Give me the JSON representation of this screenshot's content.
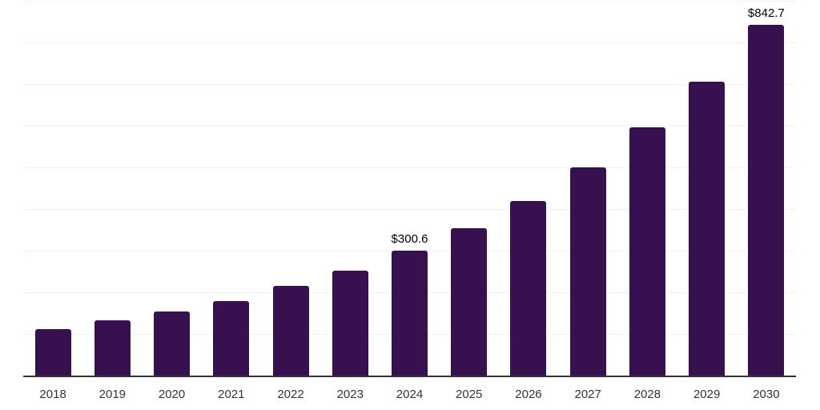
{
  "chart_data": {
    "type": "bar",
    "title": "",
    "xlabel": "",
    "ylabel": "",
    "categories": [
      "2018",
      "2019",
      "2020",
      "2021",
      "2022",
      "2023",
      "2024",
      "2025",
      "2026",
      "2027",
      "2028",
      "2029",
      "2030"
    ],
    "values": [
      110.9,
      131.9,
      153.8,
      179.3,
      215.9,
      252.4,
      300.6,
      354.3,
      420.1,
      500.3,
      595.8,
      706.6,
      842.7
    ],
    "annotations": [
      {
        "category": "2024",
        "label": "$300.6"
      },
      {
        "category": "2030",
        "label": "$842.7"
      }
    ],
    "ylim": [
      0,
      900
    ],
    "gridline_step": 100,
    "grid": true,
    "legend": false,
    "y_axis_labels_visible": false,
    "colors": {
      "bar": "#37114F",
      "gridline": "#F2F2F2",
      "axis_line": "#333333",
      "tick_label": "#333333",
      "value_label": "#000000",
      "background": "#FFFFFF"
    }
  }
}
